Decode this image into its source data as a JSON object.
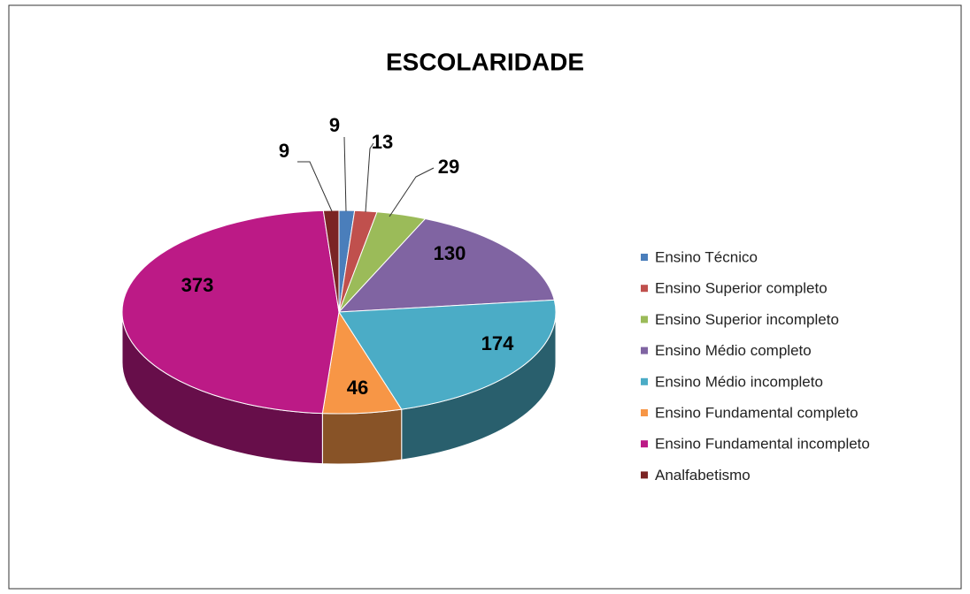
{
  "chart_data": {
    "type": "pie3d",
    "title": "ESCOLARIDADE",
    "categories": [
      "Ensino Técnico",
      "Ensino Superior completo",
      "Ensino Superior incompleto",
      "Ensino Médio completo",
      "Ensino Médio incompleto",
      "Ensino Fundamental completo",
      "Ensino Fundamental incompleto",
      "Analfabetismo"
    ],
    "values": [
      9,
      13,
      29,
      130,
      174,
      46,
      373,
      9
    ],
    "colors": [
      "#4a7ebb",
      "#c0504d",
      "#9bbb59",
      "#8064a2",
      "#4bacc6",
      "#f79646",
      "#bc1a86",
      "#7b2424"
    ],
    "legend": "right"
  }
}
